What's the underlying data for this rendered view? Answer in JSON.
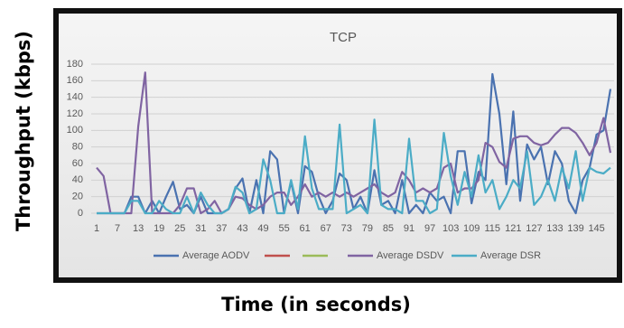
{
  "chart_data": {
    "type": "line",
    "title": "TCP",
    "xlabel": "Time (in seconds)",
    "ylabel": "Throughput (kbps)",
    "categories": [
      1,
      null,
      null,
      7,
      null,
      null,
      13,
      null,
      null,
      19,
      null,
      null,
      25,
      null,
      null,
      31,
      null,
      null,
      37,
      null,
      null,
      43,
      null,
      null,
      49,
      null,
      null,
      55,
      null,
      null,
      61,
      null,
      null,
      67,
      null,
      null,
      73,
      null,
      null,
      79,
      null,
      null,
      85,
      null,
      null,
      91,
      null,
      null,
      97,
      null,
      null,
      103,
      null,
      null,
      109,
      null,
      null,
      115,
      null,
      null,
      121,
      null,
      null,
      127,
      null,
      null,
      133,
      null,
      null,
      139,
      null,
      null,
      145,
      null,
      null
    ],
    "series": [
      {
        "name": "Average AODV",
        "color": "#4a72b0",
        "values": [
          0,
          0,
          0,
          0,
          0,
          20,
          20,
          0,
          15,
          0,
          20,
          38,
          5,
          10,
          0,
          20,
          0,
          0,
          0,
          5,
          30,
          42,
          0,
          40,
          0,
          75,
          65,
          0,
          38,
          0,
          57,
          50,
          20,
          0,
          15,
          48,
          40,
          5,
          20,
          0,
          52,
          10,
          15,
          0,
          40,
          0,
          10,
          0,
          25,
          15,
          20,
          0,
          75,
          75,
          12,
          50,
          40,
          168,
          120,
          35,
          123,
          15,
          83,
          65,
          80,
          35,
          75,
          60,
          15,
          0,
          40,
          55,
          95,
          100,
          150
        ]
      },
      {
        "color": "#c0504d",
        "values": [
          null,
          null,
          null,
          null,
          null,
          null,
          null,
          null,
          null,
          null,
          null,
          null,
          null,
          null,
          null,
          null,
          null,
          null,
          null,
          null,
          null,
          null,
          null,
          null,
          null,
          null,
          null,
          null,
          null,
          null,
          null,
          null,
          null,
          null,
          null,
          null,
          null,
          null,
          null,
          null,
          null,
          null,
          null,
          null,
          null,
          null,
          null,
          null,
          null,
          null,
          null,
          null,
          null,
          null,
          null,
          null,
          null,
          null,
          null,
          null,
          null,
          null,
          null,
          null,
          null,
          null,
          null,
          null,
          null,
          null,
          null,
          null,
          null,
          null,
          null
        ]
      },
      {
        "color": "#9bbb59",
        "values": [
          null,
          null,
          null,
          null,
          null,
          null,
          null,
          null,
          null,
          null,
          null,
          null,
          null,
          null,
          null,
          null,
          null,
          null,
          null,
          null,
          null,
          null,
          null,
          null,
          null,
          null,
          null,
          null,
          null,
          null,
          null,
          null,
          null,
          null,
          null,
          null,
          null,
          null,
          null,
          null,
          null,
          null,
          null,
          null,
          null,
          null,
          null,
          null,
          null,
          null,
          null,
          null,
          null,
          null,
          null,
          null,
          null,
          null,
          null,
          null,
          null,
          null,
          null,
          null,
          null,
          null,
          null,
          null,
          null,
          null,
          null,
          null,
          null,
          null,
          null
        ]
      },
      {
        "name": "Average DSDV",
        "color": "#8064a2",
        "values": [
          55,
          45,
          0,
          0,
          0,
          0,
          105,
          170,
          0,
          0,
          0,
          0,
          10,
          30,
          30,
          0,
          5,
          15,
          0,
          5,
          20,
          18,
          10,
          5,
          10,
          20,
          25,
          25,
          10,
          20,
          35,
          20,
          25,
          20,
          25,
          20,
          25,
          20,
          25,
          30,
          35,
          25,
          20,
          25,
          50,
          40,
          25,
          30,
          25,
          30,
          55,
          60,
          25,
          30,
          30,
          40,
          85,
          80,
          62,
          55,
          90,
          93,
          93,
          85,
          82,
          85,
          95,
          103,
          103,
          97,
          85,
          70,
          85,
          115,
          73
        ]
      },
      {
        "name": "Average DSR",
        "color": "#4bacc6",
        "values": [
          0,
          0,
          0,
          0,
          0,
          15,
          15,
          0,
          0,
          15,
          5,
          0,
          0,
          20,
          0,
          25,
          10,
          0,
          0,
          5,
          32,
          25,
          0,
          5,
          65,
          40,
          0,
          0,
          40,
          5,
          93,
          30,
          5,
          5,
          5,
          107,
          0,
          5,
          10,
          0,
          113,
          10,
          5,
          5,
          0,
          90,
          15,
          15,
          0,
          5,
          97,
          45,
          10,
          50,
          20,
          70,
          25,
          40,
          5,
          20,
          40,
          30,
          75,
          10,
          20,
          40,
          15,
          55,
          30,
          75,
          15,
          55,
          50,
          48,
          55
        ]
      }
    ],
    "ylim": [
      0,
      180
    ],
    "yticks": [
      0,
      20,
      40,
      60,
      80,
      100,
      120,
      140,
      160,
      180
    ],
    "grid": true
  }
}
